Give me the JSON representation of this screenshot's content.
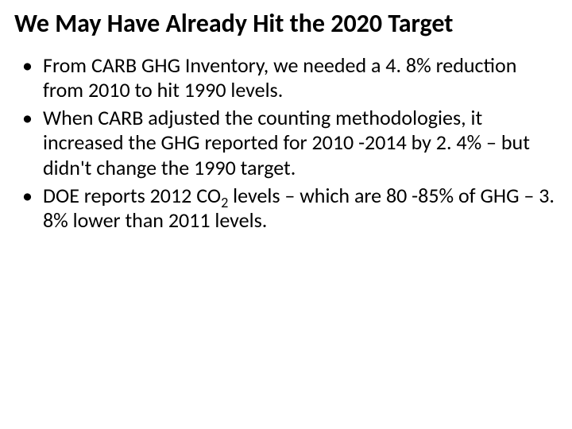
{
  "slide": {
    "title": "We May Have Already Hit the 2020 Target",
    "bullets": [
      {
        "text": "From CARB GHG Inventory, we needed a 4. 8% reduction from 2010 to hit 1990 levels."
      },
      {
        "text": "When CARB adjusted the counting methodologies, it increased the GHG reported for 2010 -2014 by 2. 4% – but didn't change the 1990 target."
      },
      {
        "pre": "DOE reports 2012 CO",
        "sub": "2",
        "post": " levels – which are 80 -85% of GHG – 3. 8% lower than 2011 levels."
      }
    ]
  },
  "style": {
    "title_fontsize": 32,
    "body_fontsize": 26,
    "text_color": "#000000",
    "background_color": "#ffffff",
    "font_family": "Calibri"
  }
}
